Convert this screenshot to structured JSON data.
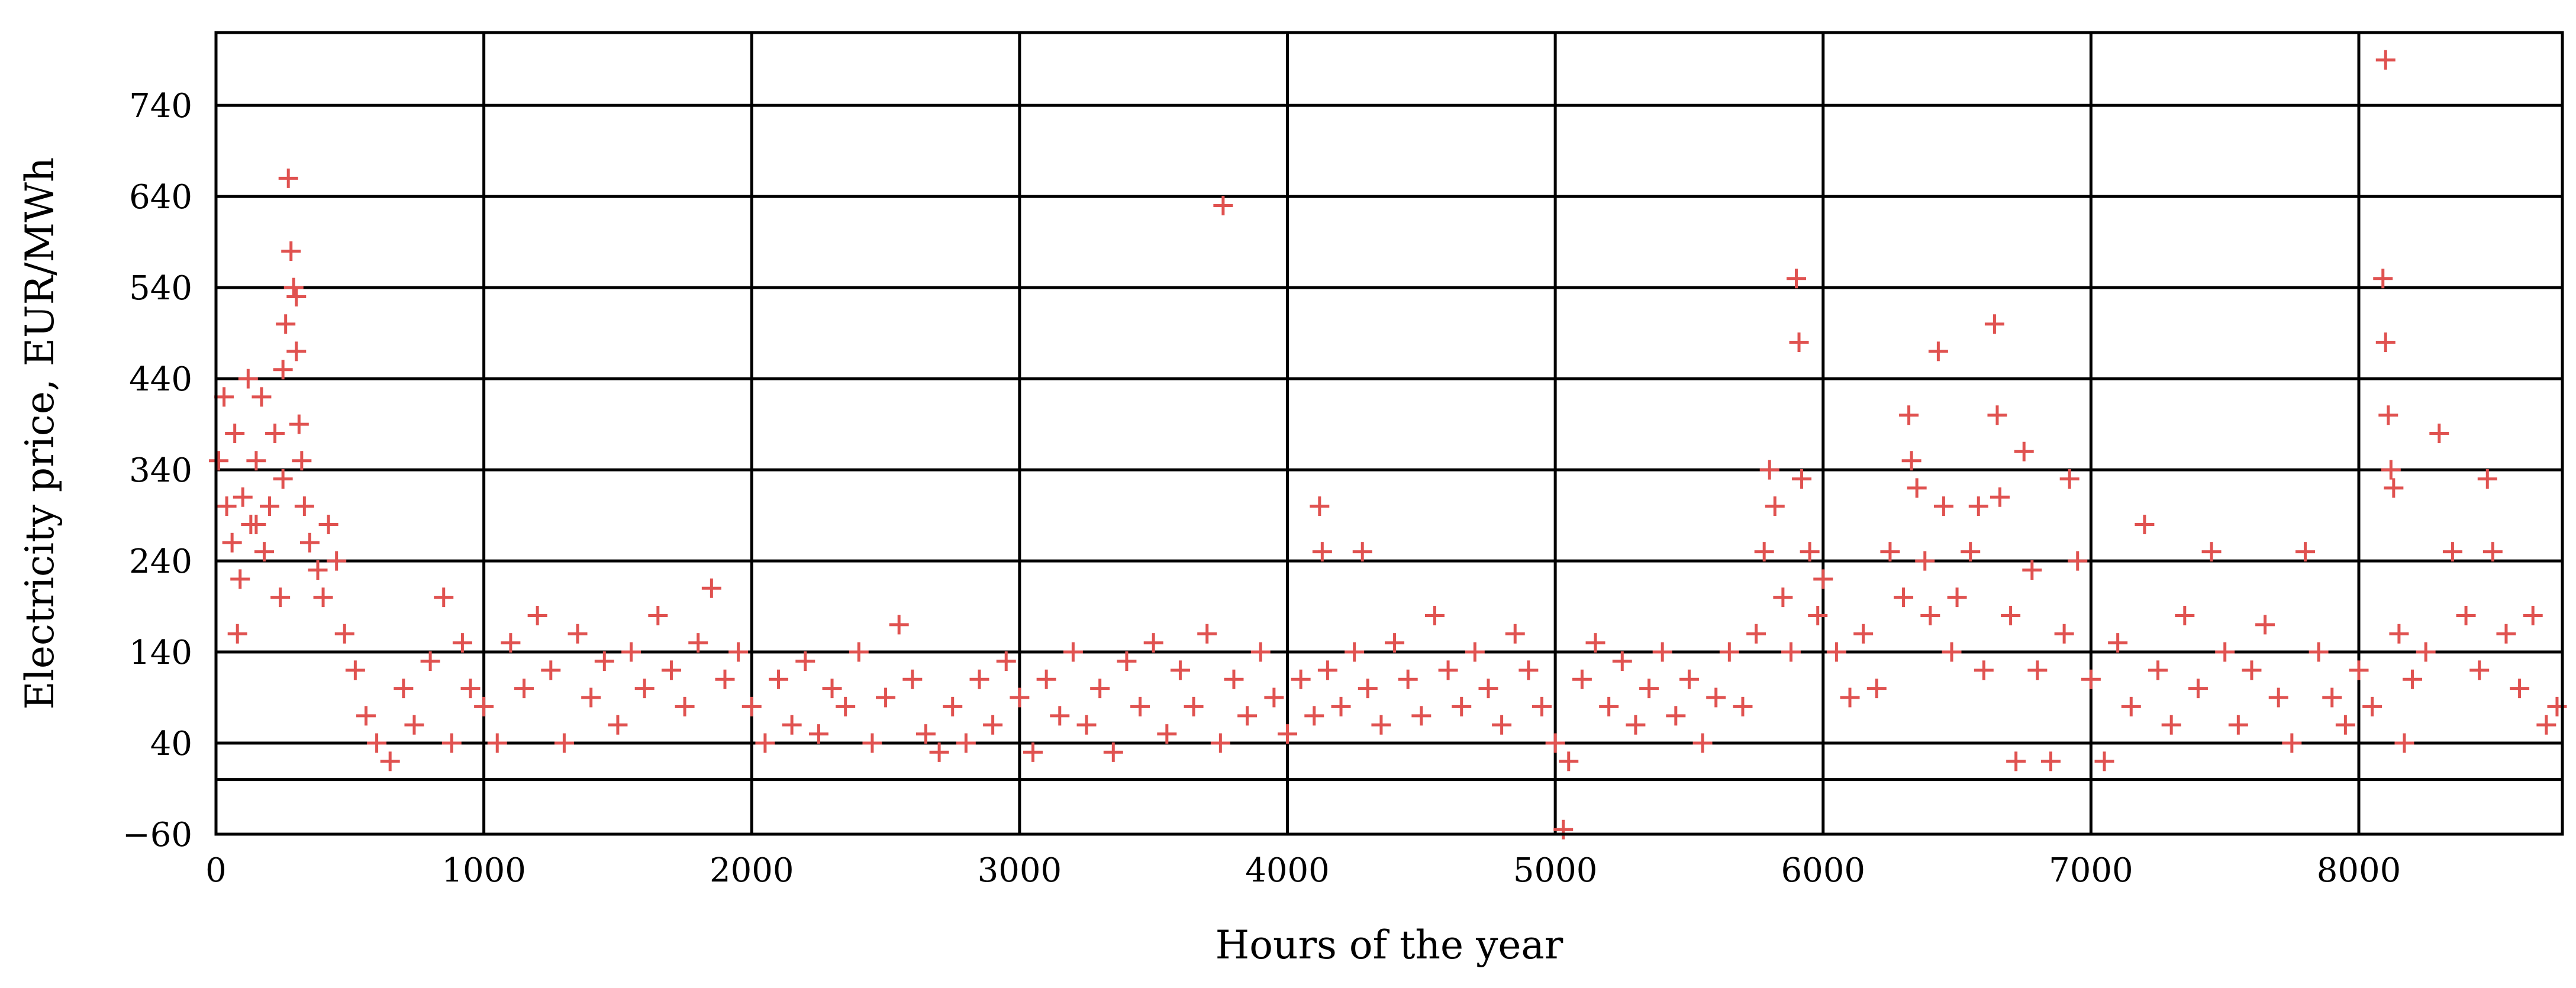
{
  "chart_data": {
    "type": "scatter",
    "title": "",
    "xlabel": "Hours of the year",
    "ylabel": "Electricity price, EUR/MWh",
    "xlim": [
      0,
      8760
    ],
    "ylim": [
      -60,
      820
    ],
    "xticks": [
      0,
      1000,
      2000,
      3000,
      4000,
      5000,
      6000,
      7000,
      8000
    ],
    "yticks": [
      -60,
      40,
      140,
      240,
      340,
      440,
      540,
      640,
      740
    ],
    "extra_gridlines_y": [
      0
    ],
    "grid": true,
    "legend": "none",
    "marker": "plus",
    "series_color": "#e05250",
    "series": [
      {
        "name": "",
        "points": [
          [
            10,
            350
          ],
          [
            30,
            420
          ],
          [
            40,
            300
          ],
          [
            60,
            260
          ],
          [
            70,
            380
          ],
          [
            80,
            160
          ],
          [
            90,
            220
          ],
          [
            100,
            310
          ],
          [
            120,
            440
          ],
          [
            130,
            280
          ],
          [
            150,
            350
          ],
          [
            170,
            420
          ],
          [
            180,
            250
          ],
          [
            200,
            300
          ],
          [
            220,
            380
          ],
          [
            240,
            200
          ],
          [
            250,
            450
          ],
          [
            260,
            500
          ],
          [
            270,
            660
          ],
          [
            280,
            580
          ],
          [
            290,
            540
          ],
          [
            300,
            470
          ],
          [
            310,
            390
          ],
          [
            320,
            350
          ],
          [
            330,
            300
          ],
          [
            350,
            260
          ],
          [
            380,
            230
          ],
          [
            400,
            200
          ],
          [
            420,
            280
          ],
          [
            450,
            240
          ],
          [
            480,
            160
          ],
          [
            520,
            120
          ],
          [
            560,
            70
          ],
          [
            600,
            40
          ],
          [
            650,
            20
          ],
          [
            700,
            100
          ],
          [
            740,
            60
          ],
          [
            800,
            130
          ],
          [
            850,
            200
          ],
          [
            880,
            40
          ],
          [
            920,
            150
          ],
          [
            950,
            100
          ],
          [
            1000,
            80
          ],
          [
            1050,
            40
          ],
          [
            1100,
            150
          ],
          [
            1150,
            100
          ],
          [
            1200,
            180
          ],
          [
            1250,
            120
          ],
          [
            1300,
            40
          ],
          [
            1350,
            160
          ],
          [
            1400,
            90
          ],
          [
            1450,
            130
          ],
          [
            1500,
            60
          ],
          [
            1550,
            140
          ],
          [
            1600,
            100
          ],
          [
            1650,
            180
          ],
          [
            1700,
            120
          ],
          [
            1750,
            80
          ],
          [
            1800,
            150
          ],
          [
            1850,
            210
          ],
          [
            1900,
            110
          ],
          [
            1950,
            140
          ],
          [
            2000,
            80
          ],
          [
            2050,
            40
          ],
          [
            2100,
            110
          ],
          [
            2150,
            60
          ],
          [
            2200,
            130
          ],
          [
            2250,
            50
          ],
          [
            2300,
            100
          ],
          [
            2350,
            80
          ],
          [
            2400,
            140
          ],
          [
            2450,
            40
          ],
          [
            2500,
            90
          ],
          [
            2550,
            170
          ],
          [
            2600,
            110
          ],
          [
            2650,
            50
          ],
          [
            2700,
            30
          ],
          [
            2750,
            80
          ],
          [
            2800,
            40
          ],
          [
            2850,
            110
          ],
          [
            2900,
            60
          ],
          [
            2950,
            130
          ],
          [
            3000,
            90
          ],
          [
            3050,
            30
          ],
          [
            3100,
            110
          ],
          [
            3150,
            70
          ],
          [
            3200,
            140
          ],
          [
            3250,
            60
          ],
          [
            3300,
            100
          ],
          [
            3350,
            30
          ],
          [
            3400,
            130
          ],
          [
            3450,
            80
          ],
          [
            3500,
            150
          ],
          [
            3550,
            50
          ],
          [
            3600,
            120
          ],
          [
            3650,
            80
          ],
          [
            3700,
            160
          ],
          [
            3750,
            40
          ],
          [
            3760,
            630
          ],
          [
            3800,
            110
          ],
          [
            3850,
            70
          ],
          [
            3900,
            140
          ],
          [
            3950,
            90
          ],
          [
            4000,
            50
          ],
          [
            4050,
            110
          ],
          [
            4100,
            70
          ],
          [
            4120,
            300
          ],
          [
            4130,
            250
          ],
          [
            4150,
            120
          ],
          [
            4200,
            80
          ],
          [
            4250,
            140
          ],
          [
            4280,
            250
          ],
          [
            4300,
            100
          ],
          [
            4350,
            60
          ],
          [
            4400,
            150
          ],
          [
            4450,
            110
          ],
          [
            4500,
            70
          ],
          [
            4550,
            180
          ],
          [
            4600,
            120
          ],
          [
            4650,
            80
          ],
          [
            4700,
            140
          ],
          [
            4750,
            100
          ],
          [
            4800,
            60
          ],
          [
            4850,
            160
          ],
          [
            4900,
            120
          ],
          [
            4950,
            80
          ],
          [
            5000,
            40
          ],
          [
            5030,
            -55
          ],
          [
            5050,
            20
          ],
          [
            5100,
            110
          ],
          [
            5150,
            150
          ],
          [
            5200,
            80
          ],
          [
            5250,
            130
          ],
          [
            5300,
            60
          ],
          [
            5350,
            100
          ],
          [
            5400,
            140
          ],
          [
            5450,
            70
          ],
          [
            5500,
            110
          ],
          [
            5550,
            40
          ],
          [
            5600,
            90
          ],
          [
            5650,
            140
          ],
          [
            5700,
            80
          ],
          [
            5750,
            160
          ],
          [
            5780,
            250
          ],
          [
            5800,
            340
          ],
          [
            5820,
            300
          ],
          [
            5850,
            200
          ],
          [
            5880,
            140
          ],
          [
            5900,
            550
          ],
          [
            5910,
            480
          ],
          [
            5920,
            330
          ],
          [
            5950,
            250
          ],
          [
            5980,
            180
          ],
          [
            6000,
            220
          ],
          [
            6050,
            140
          ],
          [
            6100,
            90
          ],
          [
            6150,
            160
          ],
          [
            6200,
            100
          ],
          [
            6250,
            250
          ],
          [
            6300,
            200
          ],
          [
            6320,
            400
          ],
          [
            6330,
            350
          ],
          [
            6350,
            320
          ],
          [
            6380,
            240
          ],
          [
            6400,
            180
          ],
          [
            6430,
            470
          ],
          [
            6450,
            300
          ],
          [
            6480,
            140
          ],
          [
            6500,
            200
          ],
          [
            6550,
            250
          ],
          [
            6580,
            300
          ],
          [
            6600,
            120
          ],
          [
            6640,
            500
          ],
          [
            6650,
            400
          ],
          [
            6660,
            310
          ],
          [
            6700,
            180
          ],
          [
            6720,
            20
          ],
          [
            6750,
            360
          ],
          [
            6780,
            230
          ],
          [
            6800,
            120
          ],
          [
            6850,
            20
          ],
          [
            6900,
            160
          ],
          [
            6920,
            330
          ],
          [
            6950,
            240
          ],
          [
            7000,
            110
          ],
          [
            7050,
            20
          ],
          [
            7100,
            150
          ],
          [
            7150,
            80
          ],
          [
            7200,
            280
          ],
          [
            7250,
            120
          ],
          [
            7300,
            60
          ],
          [
            7350,
            180
          ],
          [
            7400,
            100
          ],
          [
            7450,
            250
          ],
          [
            7500,
            140
          ],
          [
            7550,
            60
          ],
          [
            7600,
            120
          ],
          [
            7650,
            170
          ],
          [
            7700,
            90
          ],
          [
            7750,
            40
          ],
          [
            7800,
            250
          ],
          [
            7850,
            140
          ],
          [
            7900,
            90
          ],
          [
            7950,
            60
          ],
          [
            8000,
            120
          ],
          [
            8050,
            80
          ],
          [
            8090,
            550
          ],
          [
            8100,
            480
          ],
          [
            8110,
            400
          ],
          [
            8120,
            340
          ],
          [
            8130,
            320
          ],
          [
            8150,
            160
          ],
          [
            8200,
            110
          ],
          [
            8250,
            140
          ],
          [
            8300,
            380
          ],
          [
            8350,
            250
          ],
          [
            8400,
            180
          ],
          [
            8450,
            120
          ],
          [
            8480,
            330
          ],
          [
            8500,
            250
          ],
          [
            8550,
            160
          ],
          [
            8600,
            100
          ],
          [
            8650,
            180
          ],
          [
            8700,
            60
          ],
          [
            8740,
            80
          ],
          [
            8100,
            790
          ],
          [
            8170,
            40
          ],
          [
            300,
            530
          ],
          [
            250,
            330
          ],
          [
            150,
            280
          ]
        ]
      }
    ]
  }
}
